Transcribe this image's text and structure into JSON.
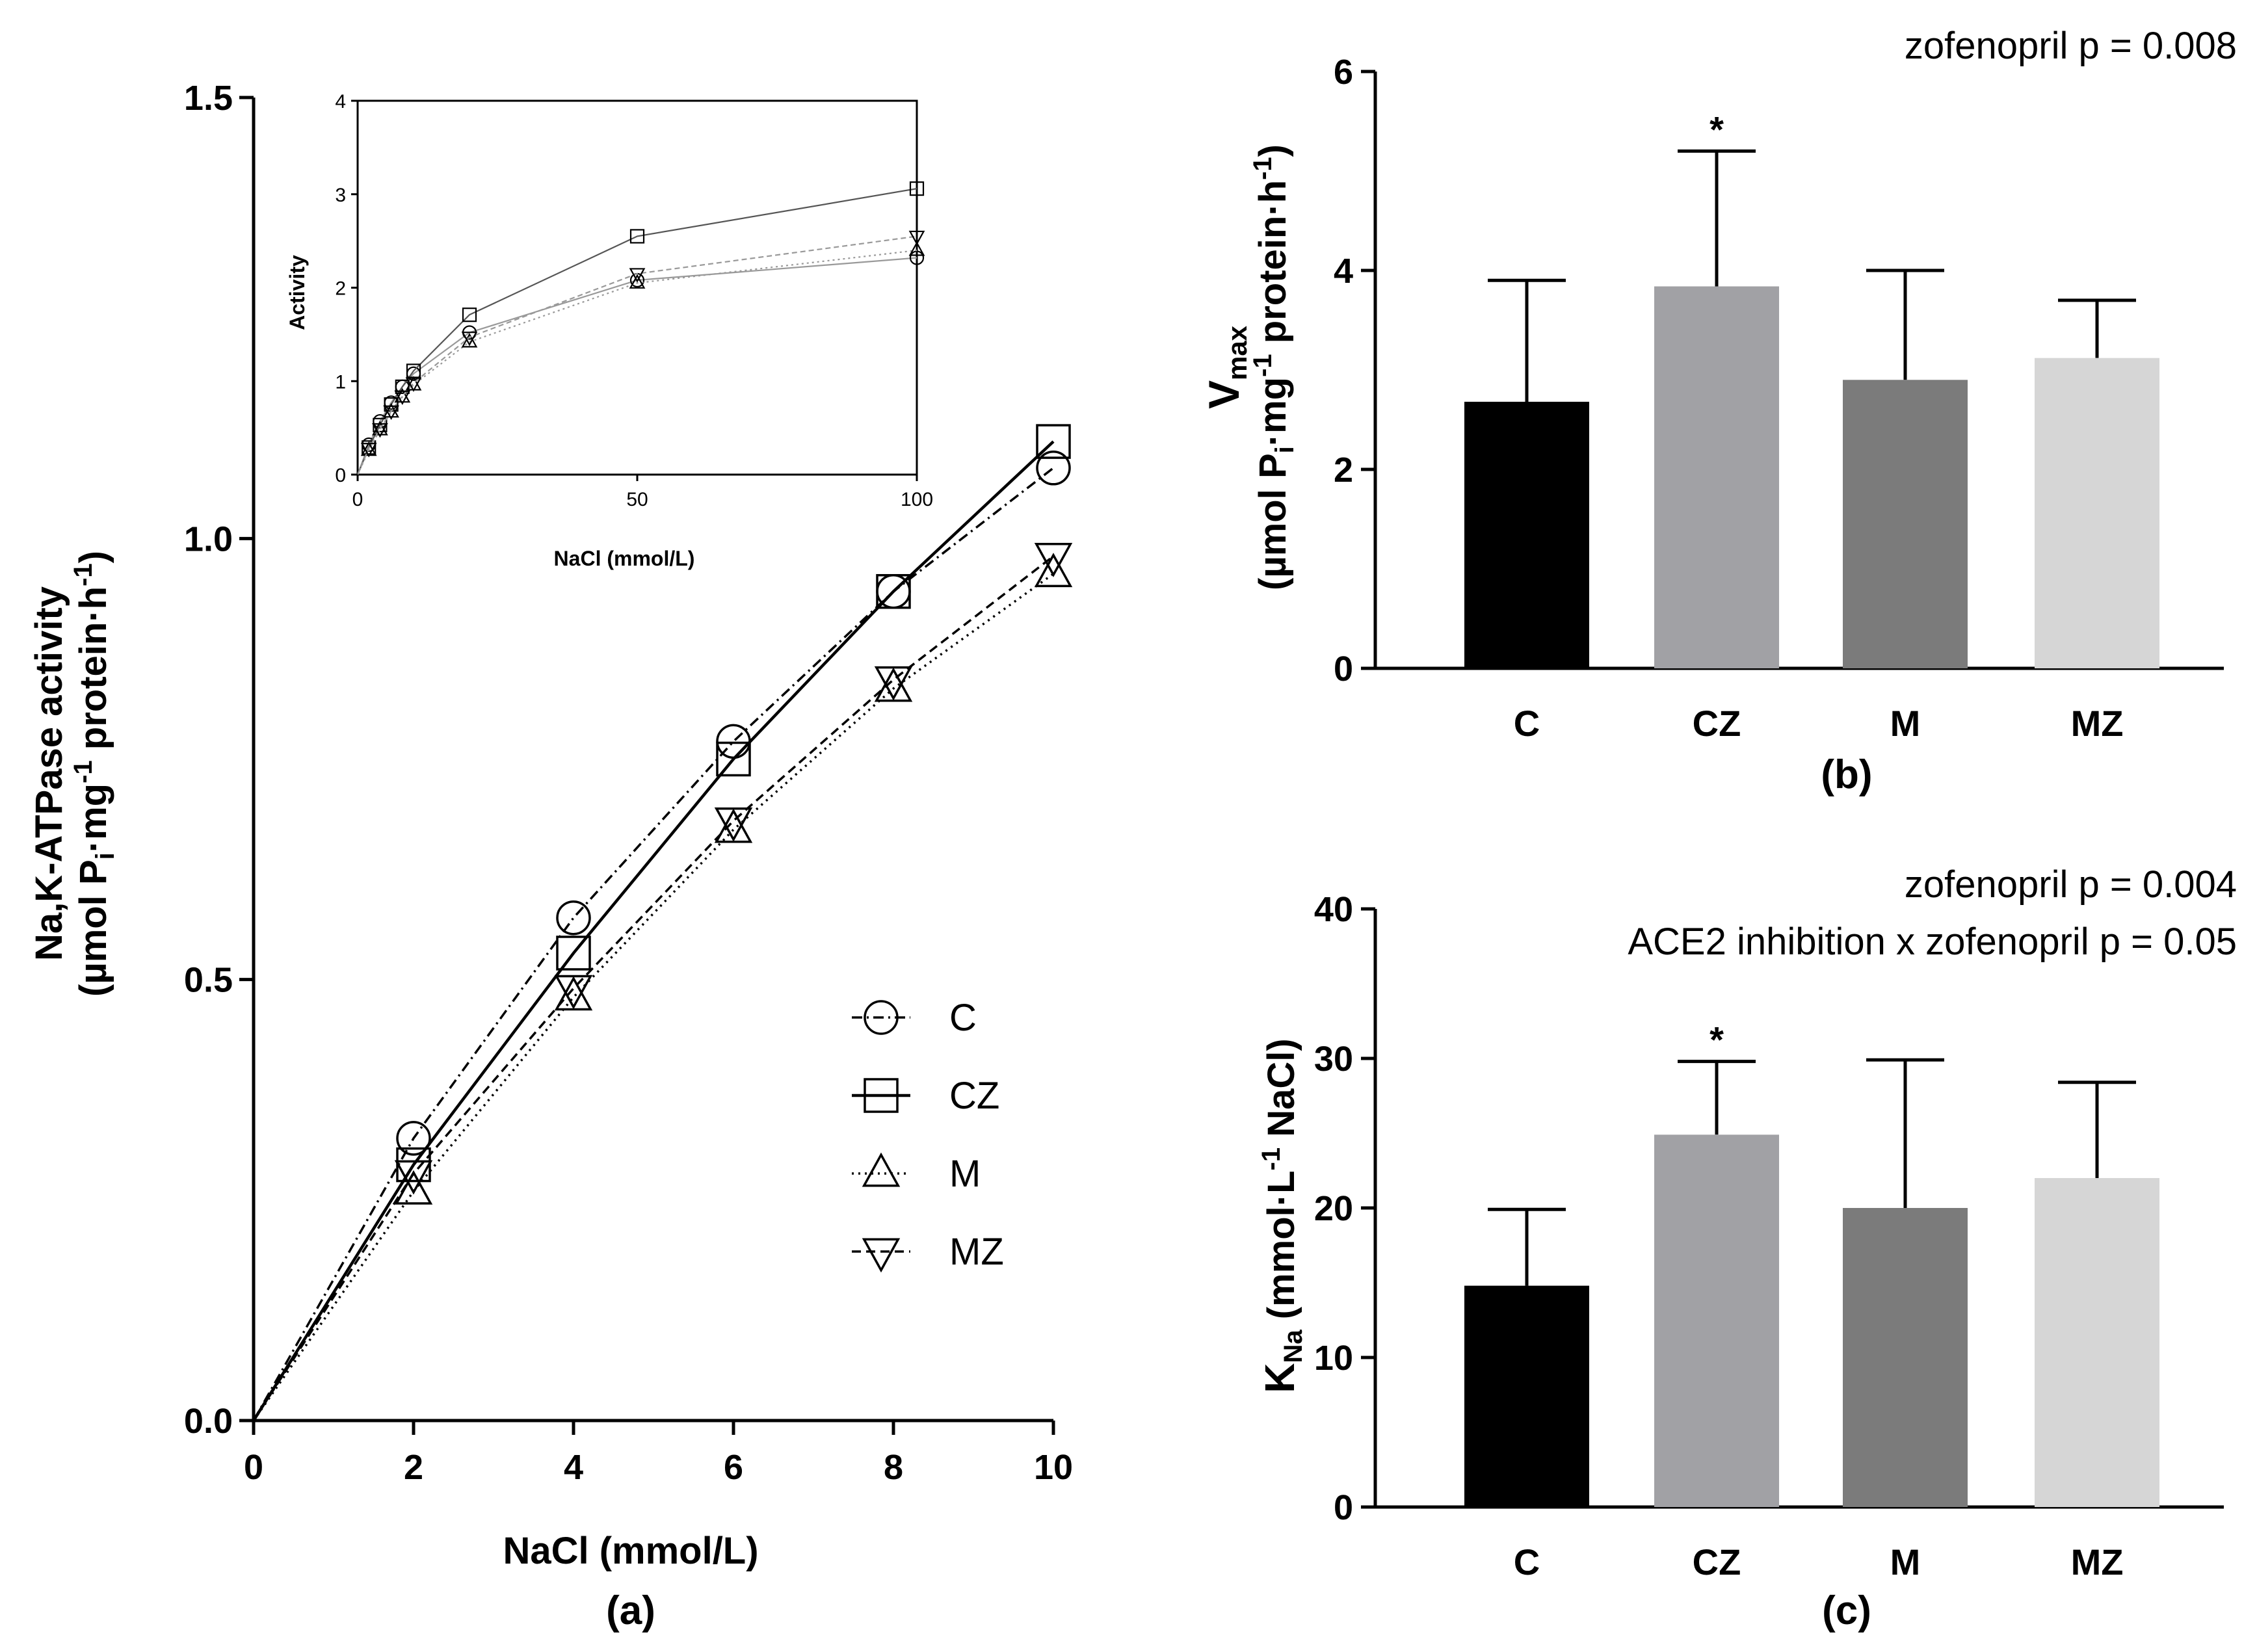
{
  "chart_data": [
    {
      "id": "a",
      "type": "line",
      "panel_label": "(a)",
      "xlabel": "NaCl (mmol/L)",
      "ylabel_line1": "Na,K-ATPase activity",
      "ylabel_line2_prefix": "(µmol P",
      "ylabel_line2_sub": "i",
      "ylabel_line2_mid": "·mg",
      "ylabel_line2_sup": "-1",
      "ylabel_line2_suffix": " protein·h",
      "ylabel_line2_sup2": "-1",
      "ylabel_line2_end": ")",
      "xlim": [
        0,
        10
      ],
      "ylim": [
        0,
        1.5
      ],
      "xticks": [
        "0",
        "2",
        "4",
        "6",
        "8",
        "10"
      ],
      "yticks": [
        "0.0",
        "0.5",
        "1.0",
        "1.5"
      ],
      "x": [
        0,
        2,
        4,
        6,
        8,
        10
      ],
      "series": [
        {
          "name": "C",
          "marker": "circle",
          "line": "dashdot",
          "values": [
            0,
            0.32,
            0.57,
            0.77,
            0.94,
            1.08
          ]
        },
        {
          "name": "CZ",
          "marker": "square",
          "line": "solid",
          "values": [
            0,
            0.29,
            0.53,
            0.75,
            0.94,
            1.11
          ]
        },
        {
          "name": "M",
          "marker": "triangle",
          "line": "dotted",
          "values": [
            0,
            0.26,
            0.48,
            0.67,
            0.83,
            0.96
          ]
        },
        {
          "name": "MZ",
          "marker": "tri-down",
          "line": "dashed",
          "values": [
            0,
            0.28,
            0.49,
            0.68,
            0.84,
            0.98
          ]
        }
      ],
      "legend": [
        "C",
        "CZ",
        "M",
        "MZ"
      ],
      "legend_position": "lower-right",
      "inset": {
        "type": "line",
        "xlabel": "NaCl (mmol/L)",
        "ylabel": "Activity",
        "xlim": [
          0,
          100
        ],
        "ylim": [
          0,
          4
        ],
        "xticks": [
          "0",
          "50",
          "100"
        ],
        "yticks": [
          "0",
          "1",
          "2",
          "3",
          "4"
        ],
        "x": [
          2,
          4,
          6,
          8,
          10,
          20,
          50,
          100
        ],
        "series": [
          {
            "name": "C",
            "marker": "circle",
            "values": [
              0.32,
              0.57,
              0.77,
              0.94,
              1.08,
              1.52,
              2.08,
              2.32
            ]
          },
          {
            "name": "CZ",
            "marker": "square",
            "values": [
              0.29,
              0.53,
              0.75,
              0.94,
              1.11,
              1.71,
              2.55,
              3.06
            ]
          },
          {
            "name": "M",
            "marker": "triangle",
            "values": [
              0.26,
              0.48,
              0.67,
              0.83,
              0.96,
              1.42,
              2.05,
              2.4
            ]
          },
          {
            "name": "MZ",
            "marker": "tri-down",
            "values": [
              0.28,
              0.49,
              0.68,
              0.84,
              0.98,
              1.47,
              2.15,
              2.55
            ]
          }
        ]
      }
    },
    {
      "id": "b",
      "type": "bar",
      "panel_label": "(b)",
      "stat_lines": [
        "zofenopril p = 0.008"
      ],
      "ylabel_line1_main": "V",
      "ylabel_line1_sub": "max",
      "ylabel_line2_prefix": "(µmol P",
      "ylabel_line2_sub": "i",
      "ylabel_line2_mid": "·mg",
      "ylabel_line2_sup": "-1",
      "ylabel_line2_suffix": " protein·h",
      "ylabel_line2_sup2": "-1",
      "ylabel_line2_end": ")",
      "categories": [
        "C",
        "CZ",
        "M",
        "MZ"
      ],
      "values": [
        2.68,
        3.84,
        2.9,
        3.12
      ],
      "errors": [
        1.22,
        1.36,
        1.1,
        0.58
      ],
      "significance": [
        "",
        "*",
        "",
        ""
      ],
      "colors": [
        "#000000",
        "#a1a1a5",
        "#7b7b7b",
        "#d6d6d6"
      ],
      "ylim": [
        0,
        6
      ],
      "yticks": [
        "0",
        "2",
        "4",
        "6"
      ]
    },
    {
      "id": "c",
      "type": "bar",
      "panel_label": "(c)",
      "stat_lines": [
        "zofenopril p = 0.004",
        "ACE2 inhibition x zofenopril p = 0.05"
      ],
      "ylabel_main": "K",
      "ylabel_sub": "Na",
      "ylabel_rest_prefix": " (mmol·L",
      "ylabel_rest_sup": "-1",
      "ylabel_rest_suffix": " NaCl)",
      "categories": [
        "C",
        "CZ",
        "M",
        "MZ"
      ],
      "values": [
        14.8,
        24.9,
        20.0,
        22.0
      ],
      "errors": [
        5.1,
        4.9,
        9.9,
        6.4
      ],
      "significance": [
        "",
        "*",
        "",
        ""
      ],
      "colors": [
        "#000000",
        "#a1a1a5",
        "#7b7b7b",
        "#d6d6d6"
      ],
      "ylim": [
        0,
        40
      ],
      "yticks": [
        "0",
        "10",
        "20",
        "30",
        "40"
      ]
    }
  ]
}
